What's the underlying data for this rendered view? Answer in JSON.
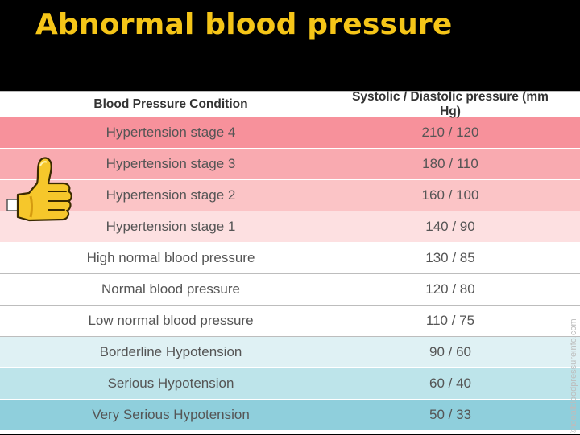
{
  "slide": {
    "title": "Abnormal blood pressure"
  },
  "table": {
    "headers": [
      "Blood Pressure Condition",
      "Systolic / Diastolic pressure (mm Hg)"
    ],
    "rows": [
      {
        "condition": "Hypertension stage 4",
        "pressure": "210 / 120",
        "color": "#f7919b"
      },
      {
        "condition": "Hypertension stage 3",
        "pressure": "180 / 110",
        "color": "#f9aab0"
      },
      {
        "condition": "Hypertension stage 2",
        "pressure": "160 / 100",
        "color": "#fbc4c6"
      },
      {
        "condition": "Hypertension stage 1",
        "pressure": "140 / 90",
        "color": "#fde0e1"
      },
      {
        "condition": "High normal blood pressure",
        "pressure": "130 / 85",
        "color": "#ffffff"
      },
      {
        "condition": "Normal blood pressure",
        "pressure": "120 / 80",
        "color": "#ffffff"
      },
      {
        "condition": "Low normal blood pressure",
        "pressure": "110 / 75",
        "color": "#ffffff"
      },
      {
        "condition": "Borderline Hypotension",
        "pressure": "90 / 60",
        "color": "#dff1f4"
      },
      {
        "condition": "Serious Hypotension",
        "pressure": "60 / 40",
        "color": "#bde4ea"
      },
      {
        "condition": "Very Serious Hypotension",
        "pressure": "50 / 33",
        "color": "#8fcfdc"
      }
    ]
  },
  "watermark": "©idealbloodpressureinfo.com",
  "icons": {
    "thumb": "thumbs-up-icon"
  }
}
